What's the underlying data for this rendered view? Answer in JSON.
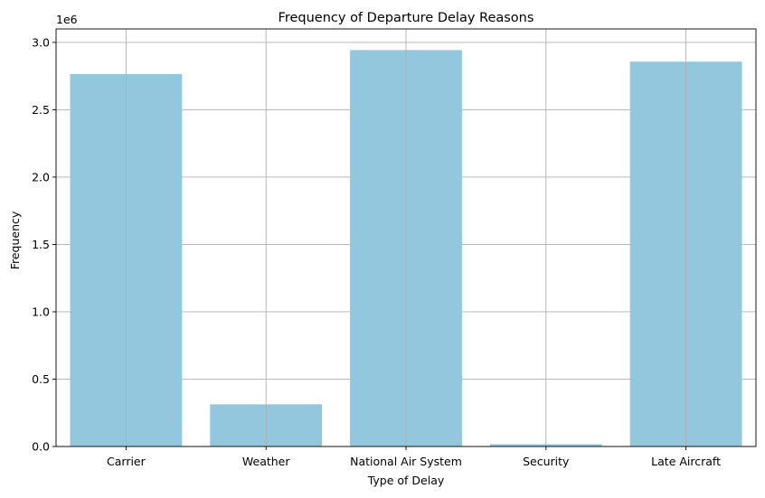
{
  "chart_data": {
    "type": "bar",
    "title": "Frequency of Departure Delay Reasons",
    "xlabel": "Type of Delay",
    "ylabel": "Frequency",
    "y_multiplier_label": "1e6",
    "categories": [
      "Carrier",
      "Weather",
      "National Air System",
      "Security",
      "Late Aircraft"
    ],
    "values": [
      2765000,
      313000,
      2943000,
      17000,
      2857000
    ],
    "ylim": [
      0,
      3100000
    ],
    "yticks": [
      0,
      500000,
      1000000,
      1500000,
      2000000,
      2500000,
      3000000
    ],
    "ytick_labels": [
      "0.0",
      "0.5",
      "1.0",
      "1.5",
      "2.0",
      "2.5",
      "3.0"
    ],
    "grid": true,
    "legend": "none",
    "colors": {
      "bar": "#92c7de",
      "grid": "#b0b0b0",
      "axis": "#000000"
    }
  }
}
